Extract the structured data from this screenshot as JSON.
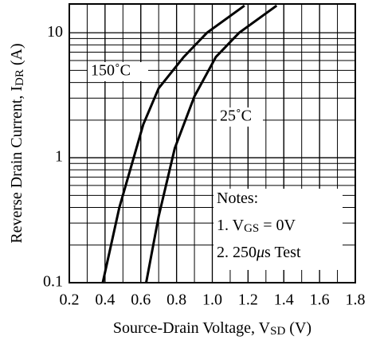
{
  "chart_data": {
    "type": "line",
    "x_label": [
      {
        "t": "Source-Drain Voltage, V"
      },
      {
        "t": "SD",
        "sub": true
      },
      {
        "t": " (V)"
      }
    ],
    "y_label": [
      {
        "t": "Reverse Drain Current, I"
      },
      {
        "t": "DR",
        "sub": true
      },
      {
        "t": " (A)"
      }
    ],
    "xlim": [
      0.2,
      1.8
    ],
    "xticks": [
      0.2,
      0.4,
      0.6,
      0.8,
      {
        "value": 1,
        "label": "1.0"
      },
      1.2,
      1.4,
      1.6,
      1.8
    ],
    "ylim": [
      0.1,
      17
    ],
    "yticks": [
      0.1,
      1,
      10
    ],
    "log_y": true,
    "grid": true,
    "minor_grid": true,
    "series": [
      {
        "name": "150˚C",
        "color": "#000000",
        "x": [
          0.387,
          0.48,
          0.614,
          0.7,
          0.84,
          0.97,
          1.18
        ],
        "values": [
          0.1,
          0.4,
          1.85,
          3.6,
          6.4,
          10,
          16.5
        ]
      },
      {
        "name": "25˚C",
        "color": "#000000",
        "x": [
          0.63,
          0.7,
          0.79,
          0.9,
          1.02,
          1.15,
          1.36
        ],
        "values": [
          0.1,
          0.34,
          1.19,
          3.1,
          6.4,
          10,
          16.5
        ]
      }
    ],
    "notes": [
      [
        {
          "t": "Notes:"
        }
      ],
      [
        {
          "t": "1. V"
        },
        {
          "t": "GS",
          "sub": true
        },
        {
          "t": " = 0V"
        }
      ],
      [
        {
          "t": "2. 250"
        },
        {
          "t": "μ",
          "italic": true
        },
        {
          "t": "s Test"
        }
      ]
    ]
  }
}
